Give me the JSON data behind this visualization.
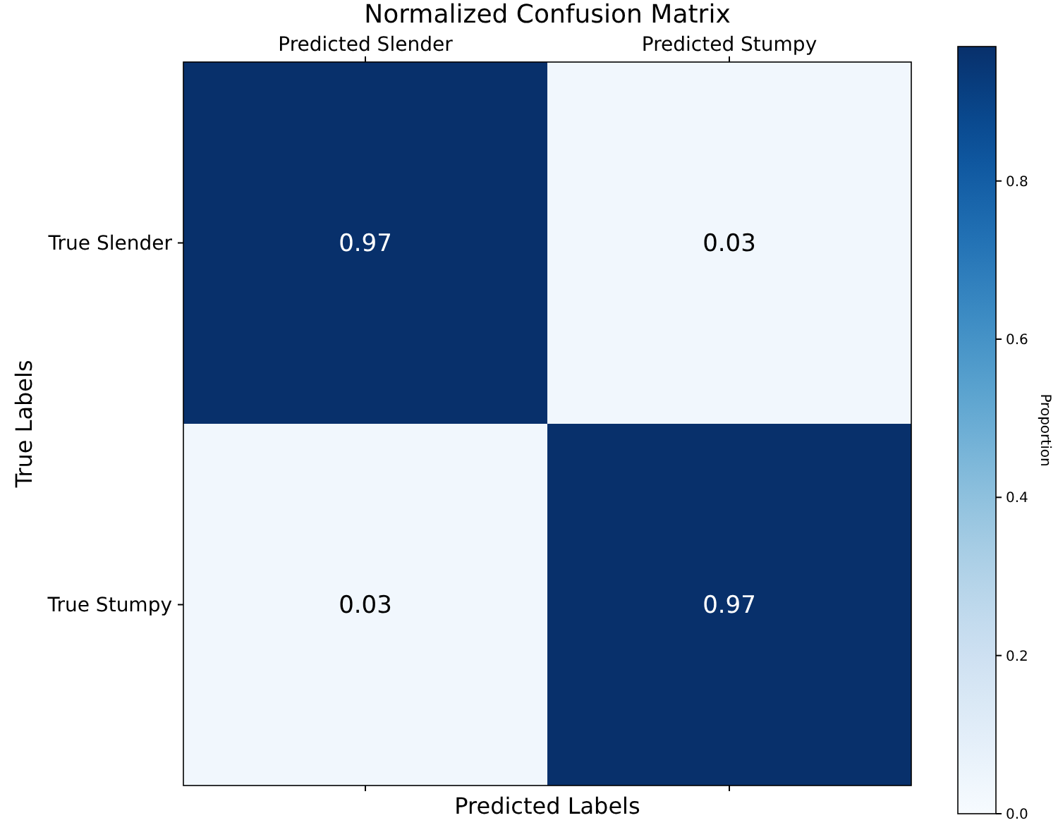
{
  "chart_data": {
    "type": "heatmap",
    "title": "Normalized Confusion Matrix",
    "xlabel": "Predicted Labels",
    "ylabel": "True Labels",
    "clabel": "Proportion",
    "categories": [
      "Predicted Slender",
      "Predicted Stumpy"
    ],
    "y_categories": [
      "True Slender",
      "True Stumpy"
    ],
    "cells": [
      [
        0.97,
        0.03
      ],
      [
        0.03,
        0.97
      ]
    ],
    "clim": [
      0,
      0.97
    ],
    "cticks": [
      {
        "value": 0,
        "label": "0.0"
      },
      0.2,
      0.4,
      0.6,
      0.8
    ],
    "data_labels": true
  }
}
